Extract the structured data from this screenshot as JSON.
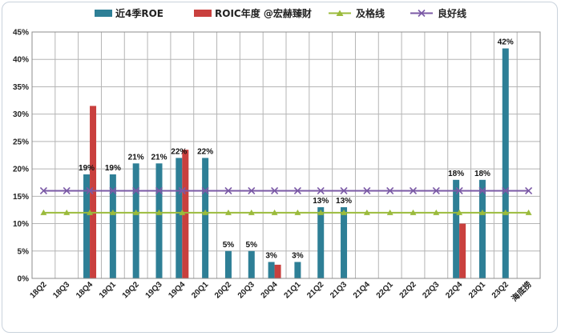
{
  "chart_data": {
    "type": "bar",
    "categories": [
      "18Q2",
      "18Q3",
      "18Q4",
      "19Q1",
      "19Q2",
      "19Q3",
      "19Q4",
      "20Q1",
      "20Q2",
      "20Q3",
      "20Q4",
      "21Q1",
      "21Q2",
      "21Q3",
      "21Q4",
      "22Q1",
      "22Q2",
      "22Q3",
      "22Q4",
      "23Q1",
      "23Q2",
      "海底捞"
    ],
    "ylim": [
      0,
      45
    ],
    "yticks": [
      0,
      5,
      10,
      15,
      20,
      25,
      30,
      35,
      40,
      45
    ],
    "ytick_labels": [
      "0%",
      "5%",
      "10%",
      "15%",
      "20%",
      "25%",
      "30%",
      "35%",
      "40%",
      "45%"
    ],
    "grid": true,
    "legend_position": "top",
    "series": [
      {
        "name": "近4季ROE",
        "kind": "bar",
        "color": "#2e7f96",
        "values": [
          null,
          null,
          19,
          19,
          21,
          21,
          22,
          22,
          5,
          5,
          3,
          3,
          13,
          13,
          null,
          null,
          null,
          null,
          18,
          18,
          42,
          null
        ],
        "labels": [
          null,
          null,
          "19%",
          "19%",
          "21%",
          "21%",
          "22%",
          "22%",
          "5%",
          "5%",
          "3%",
          "3%",
          "13%",
          "13%",
          null,
          null,
          null,
          null,
          "18%",
          "18%",
          "42%",
          null
        ]
      },
      {
        "name": "ROIC年度 @宏赫臻财",
        "kind": "bar",
        "color": "#c9403e",
        "values": [
          null,
          null,
          31.5,
          null,
          null,
          null,
          23.5,
          null,
          null,
          null,
          2.5,
          null,
          null,
          null,
          null,
          null,
          null,
          null,
          10,
          null,
          null,
          null
        ]
      },
      {
        "name": "及格线",
        "kind": "line",
        "color": "#9bbb3c",
        "marker": "triangle",
        "values": [
          12,
          12,
          12,
          12,
          12,
          12,
          12,
          12,
          12,
          12,
          12,
          12,
          12,
          12,
          12,
          12,
          12,
          12,
          12,
          12,
          12,
          12
        ]
      },
      {
        "name": "良好线",
        "kind": "line",
        "color": "#7b5aa6",
        "marker": "x",
        "values": [
          16,
          16,
          16,
          16,
          16,
          16,
          16,
          16,
          16,
          16,
          16,
          16,
          16,
          16,
          16,
          16,
          16,
          16,
          16,
          16,
          16,
          16
        ]
      }
    ]
  }
}
